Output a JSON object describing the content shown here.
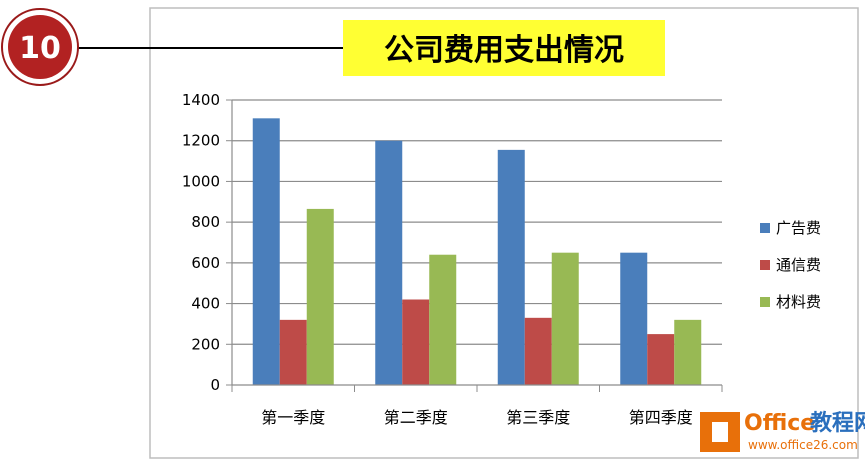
{
  "badge": {
    "number": "10"
  },
  "watermark": {
    "brand_office": "Office",
    "brand_cn": "教程网",
    "url": "www.office26.com"
  },
  "colors": {
    "ad": "#4a7ebb",
    "comm": "#be4b48",
    "material": "#98b954",
    "title_bg": "#ffff33",
    "badge": "#b22222",
    "watermark_orange": "#e8700a"
  },
  "chart_data": {
    "type": "bar",
    "title": "公司费用支出情况",
    "xlabel": "",
    "ylabel": "",
    "categories": [
      "第一季度",
      "第二季度",
      "第三季度",
      "第四季度"
    ],
    "series": [
      {
        "name": "广告费",
        "values": [
          1310,
          1200,
          1155,
          650
        ]
      },
      {
        "name": "通信费",
        "values": [
          320,
          420,
          330,
          250
        ]
      },
      {
        "name": "材料费",
        "values": [
          865,
          640,
          650,
          320
        ]
      }
    ],
    "ylim": [
      0,
      1400
    ],
    "yticks": [
      "0",
      "200",
      "400",
      "600",
      "800",
      "1000",
      "1200",
      "1400"
    ],
    "grid": true,
    "legend_position": "right"
  }
}
